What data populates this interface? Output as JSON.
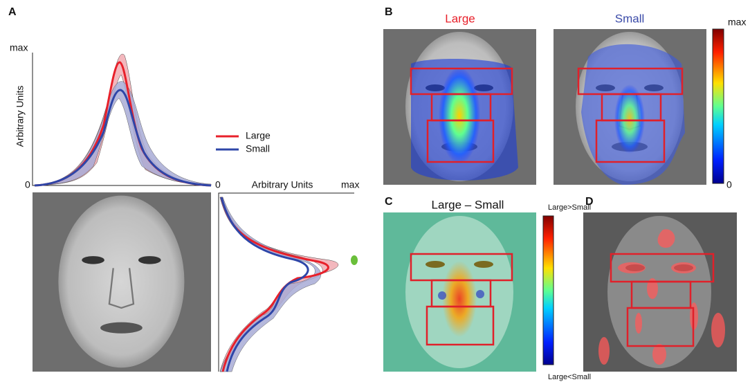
{
  "panels": {
    "a": {
      "label": "A",
      "y_max_label": "max",
      "y_zero_label": "0",
      "y_axis_label": "Arbitrary Units",
      "legend": [
        "Large",
        "Small"
      ],
      "side_plot": {
        "zero_label": "0",
        "axis_label": "Arbitrary Units",
        "max_label": "max"
      }
    },
    "b": {
      "label": "B",
      "titles": [
        "Large",
        "Small"
      ],
      "colorbar": {
        "max_label": "max",
        "min_label": "0"
      }
    },
    "c": {
      "label": "C",
      "title": "Large – Small",
      "colorbar": {
        "top_label": "Large>Small",
        "bottom_label": "Large<Small"
      }
    },
    "d": {
      "label": "D"
    }
  }
}
